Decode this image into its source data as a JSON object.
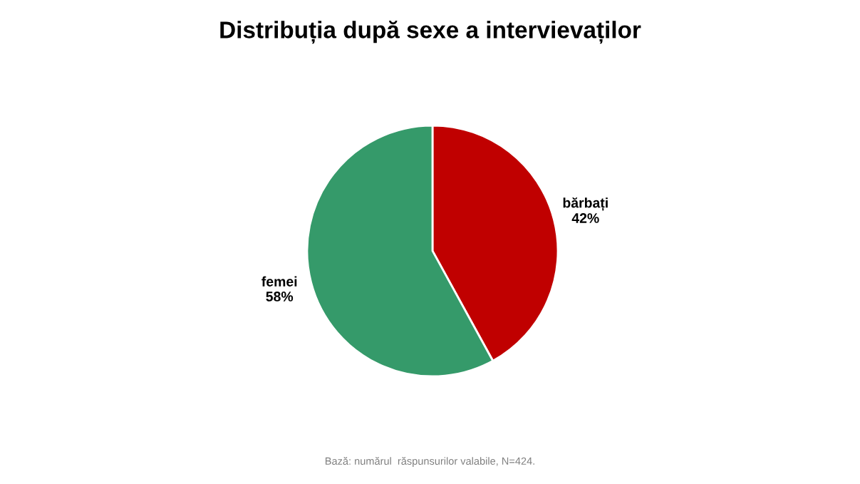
{
  "chart_data": {
    "type": "pie",
    "title": "Distribuția după sexe a intervievaților",
    "categories": [
      "bărbați",
      "femei"
    ],
    "values": [
      42,
      58
    ],
    "value_labels": [
      "42%",
      "58%"
    ],
    "colors": [
      "#c00000",
      "#359a6a"
    ],
    "annotations": [
      "Bază: numărul  răspunsurilor valabile, N=424."
    ],
    "legend": false
  }
}
